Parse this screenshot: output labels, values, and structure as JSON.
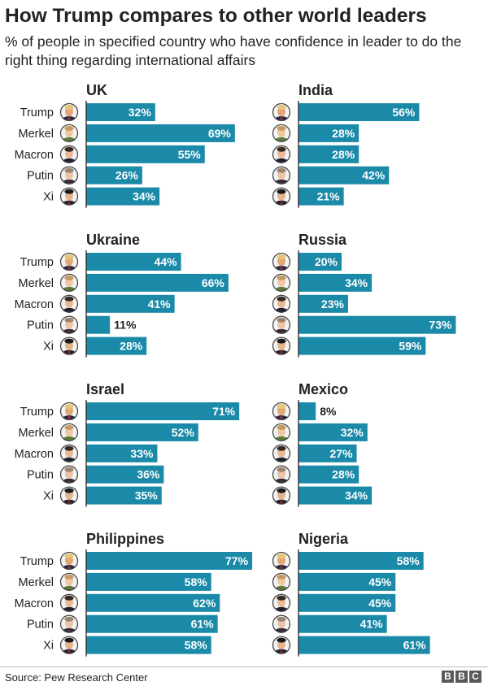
{
  "title": "How Trump compares to other world leaders",
  "subtitle": "% of people in specified country who have confidence in leader to do the right thing regarding international affairs",
  "source": "Source: Pew Research Center",
  "logo": [
    "B",
    "B",
    "C"
  ],
  "colors": {
    "bar": "#1a8aa8",
    "text": "#222222"
  },
  "chart_data": {
    "type": "bar",
    "orientation": "horizontal",
    "leaders": [
      "Trump",
      "Merkel",
      "Macron",
      "Putin",
      "Xi"
    ],
    "value_format": "{v}%",
    "panels": [
      {
        "country": "UK",
        "values": [
          32,
          69,
          55,
          26,
          34
        ]
      },
      {
        "country": "India",
        "values": [
          56,
          28,
          28,
          42,
          21
        ]
      },
      {
        "country": "Ukraine",
        "values": [
          44,
          66,
          41,
          11,
          28
        ]
      },
      {
        "country": "Russia",
        "values": [
          20,
          34,
          23,
          73,
          59
        ]
      },
      {
        "country": "Israel",
        "values": [
          71,
          52,
          33,
          36,
          35
        ]
      },
      {
        "country": "Mexico",
        "values": [
          8,
          32,
          27,
          28,
          34
        ]
      },
      {
        "country": "Philippines",
        "values": [
          77,
          58,
          62,
          61,
          58
        ]
      },
      {
        "country": "Nigeria",
        "values": [
          58,
          45,
          45,
          41,
          61
        ]
      }
    ]
  }
}
